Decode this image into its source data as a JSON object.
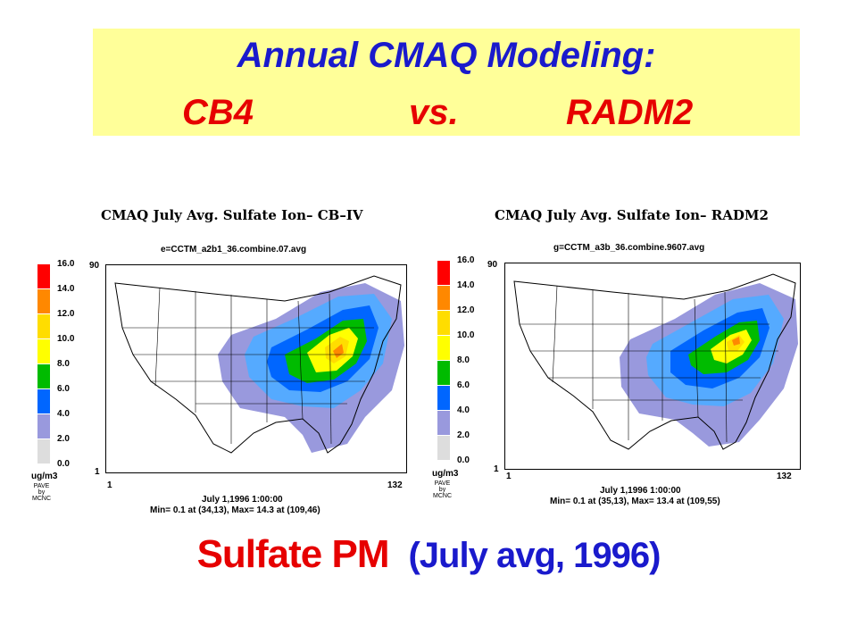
{
  "header": {
    "line1": "Annual CMAQ Modeling:",
    "cb4": "CB4",
    "vs": "vs.",
    "radm2": "RADM2"
  },
  "colorbar": {
    "ticks": [
      "16.0",
      "14.0",
      "12.0",
      "10.0",
      "8.0",
      "6.0",
      "4.0",
      "2.0",
      "0.0"
    ],
    "colors": [
      "#ff0000",
      "#ff8800",
      "#ffdd00",
      "#ffff00",
      "#00bb00",
      "#0066ff",
      "#55aaff",
      "#9999dd",
      "#dddddd"
    ],
    "unit": "ug/m3",
    "credit_line1": "PAVE",
    "credit_line2": "by",
    "credit_line3": "MCNC"
  },
  "left_map": {
    "title": "CMAQ July Avg. Sulfate Ion– CB–IV",
    "file": "e=CCTM_a2b1_36.combine.07.avg",
    "y_top": "90",
    "y_bottom": "1",
    "x_left": "1",
    "x_right": "132",
    "date": "July 1,1996 1:00:00",
    "minmax": "Min= 0.1 at (34,13), Max= 14.3 at (109,46)"
  },
  "right_map": {
    "title": "CMAQ July Avg. Sulfate Ion– RADM2",
    "file": "g=CCTM_a3b_36.combine.9607.avg",
    "y_top": "90",
    "y_bottom": "1",
    "x_left": "1",
    "x_right": "132",
    "date": "July 1,1996 1:00:00",
    "minmax": "Min= 0.1 at (35,13), Max= 13.4 at (109,55)"
  },
  "caption": {
    "main": "Sulfate PM",
    "sub": "(July avg, 1996)"
  }
}
